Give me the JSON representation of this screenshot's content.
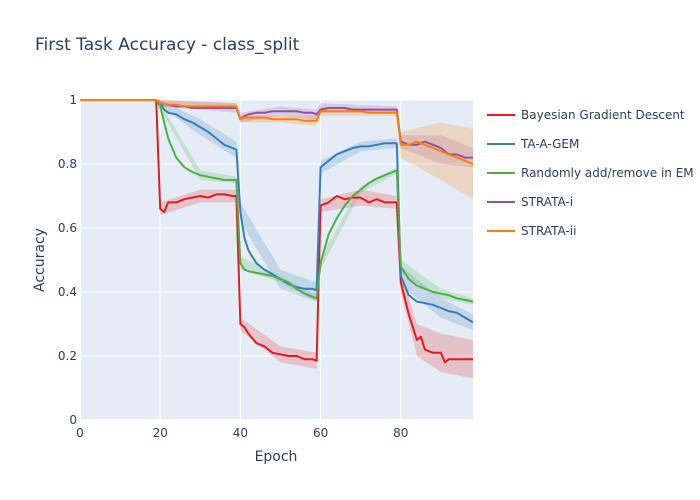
{
  "chart_data": {
    "type": "line",
    "title": "First Task Accuracy - class_split",
    "xlabel": "Epoch",
    "ylabel": "Accuracy",
    "xlim": [
      0,
      98
    ],
    "ylim": [
      0,
      1
    ],
    "xticks": [
      "0",
      "20",
      "40",
      "60",
      "80"
    ],
    "yticks": [
      "0",
      "0.2",
      "0.4",
      "0.6",
      "0.8",
      "1"
    ],
    "grid": true,
    "legend_position": "right",
    "background": "#e5ecf6",
    "series": [
      {
        "name": "Bayesian Gradient Descent",
        "color": "#e41a1c",
        "points": [
          [
            0,
            1.0
          ],
          [
            19,
            1.0
          ],
          [
            20,
            0.66
          ],
          [
            21,
            0.65
          ],
          [
            22,
            0.68
          ],
          [
            24,
            0.68
          ],
          [
            26,
            0.69
          ],
          [
            28,
            0.695
          ],
          [
            30,
            0.7
          ],
          [
            32,
            0.695
          ],
          [
            34,
            0.705
          ],
          [
            36,
            0.705
          ],
          [
            38,
            0.7
          ],
          [
            39,
            0.7
          ],
          [
            40,
            0.3
          ],
          [
            41,
            0.29
          ],
          [
            42,
            0.27
          ],
          [
            44,
            0.24
          ],
          [
            46,
            0.23
          ],
          [
            48,
            0.21
          ],
          [
            50,
            0.205
          ],
          [
            52,
            0.2
          ],
          [
            54,
            0.2
          ],
          [
            56,
            0.19
          ],
          [
            58,
            0.19
          ],
          [
            59,
            0.185
          ],
          [
            60,
            0.67
          ],
          [
            62,
            0.68
          ],
          [
            64,
            0.7
          ],
          [
            66,
            0.69
          ],
          [
            68,
            0.695
          ],
          [
            70,
            0.695
          ],
          [
            72,
            0.68
          ],
          [
            74,
            0.69
          ],
          [
            76,
            0.68
          ],
          [
            78,
            0.68
          ],
          [
            79,
            0.68
          ],
          [
            80,
            0.43
          ],
          [
            82,
            0.33
          ],
          [
            84,
            0.25
          ],
          [
            85,
            0.26
          ],
          [
            86,
            0.22
          ],
          [
            88,
            0.21
          ],
          [
            90,
            0.21
          ],
          [
            91,
            0.18
          ],
          [
            92,
            0.19
          ],
          [
            94,
            0.19
          ],
          [
            96,
            0.19
          ],
          [
            98,
            0.19
          ]
        ],
        "band": [
          [
            0,
            1.0,
            1.0
          ],
          [
            19,
            1.0,
            1.0
          ],
          [
            20,
            0.64,
            0.68
          ],
          [
            30,
            0.68,
            0.72
          ],
          [
            39,
            0.68,
            0.72
          ],
          [
            40,
            0.28,
            0.32
          ],
          [
            50,
            0.18,
            0.23
          ],
          [
            59,
            0.16,
            0.21
          ],
          [
            60,
            0.65,
            0.69
          ],
          [
            70,
            0.67,
            0.72
          ],
          [
            79,
            0.66,
            0.7
          ],
          [
            80,
            0.4,
            0.46
          ],
          [
            84,
            0.2,
            0.3
          ],
          [
            90,
            0.15,
            0.27
          ],
          [
            98,
            0.13,
            0.25
          ]
        ]
      },
      {
        "name": "TA-A-GEM",
        "color": "#377eb8",
        "points": [
          [
            0,
            1.0
          ],
          [
            19,
            1.0
          ],
          [
            20,
            0.99
          ],
          [
            21,
            0.97
          ],
          [
            22,
            0.96
          ],
          [
            24,
            0.955
          ],
          [
            26,
            0.94
          ],
          [
            28,
            0.93
          ],
          [
            30,
            0.915
          ],
          [
            32,
            0.9
          ],
          [
            34,
            0.88
          ],
          [
            36,
            0.86
          ],
          [
            38,
            0.85
          ],
          [
            39,
            0.845
          ],
          [
            40,
            0.65
          ],
          [
            41,
            0.57
          ],
          [
            42,
            0.53
          ],
          [
            44,
            0.49
          ],
          [
            46,
            0.47
          ],
          [
            48,
            0.455
          ],
          [
            50,
            0.44
          ],
          [
            52,
            0.425
          ],
          [
            54,
            0.415
          ],
          [
            56,
            0.41
          ],
          [
            58,
            0.41
          ],
          [
            59,
            0.405
          ],
          [
            60,
            0.79
          ],
          [
            62,
            0.81
          ],
          [
            64,
            0.83
          ],
          [
            66,
            0.84
          ],
          [
            68,
            0.85
          ],
          [
            70,
            0.855
          ],
          [
            72,
            0.855
          ],
          [
            74,
            0.86
          ],
          [
            76,
            0.865
          ],
          [
            78,
            0.865
          ],
          [
            79,
            0.865
          ],
          [
            80,
            0.45
          ],
          [
            82,
            0.39
          ],
          [
            84,
            0.37
          ],
          [
            86,
            0.365
          ],
          [
            88,
            0.36
          ],
          [
            90,
            0.35
          ],
          [
            92,
            0.34
          ],
          [
            94,
            0.335
          ],
          [
            96,
            0.32
          ],
          [
            98,
            0.305
          ]
        ],
        "band": [
          [
            0,
            1.0,
            1.0
          ],
          [
            19,
            1.0,
            1.0
          ],
          [
            20,
            0.98,
            1.0
          ],
          [
            30,
            0.89,
            0.94
          ],
          [
            39,
            0.82,
            0.87
          ],
          [
            40,
            0.62,
            0.68
          ],
          [
            50,
            0.41,
            0.47
          ],
          [
            59,
            0.37,
            0.43
          ],
          [
            60,
            0.77,
            0.81
          ],
          [
            70,
            0.84,
            0.87
          ],
          [
            79,
            0.85,
            0.88
          ],
          [
            80,
            0.42,
            0.48
          ],
          [
            90,
            0.32,
            0.38
          ],
          [
            98,
            0.28,
            0.33
          ]
        ]
      },
      {
        "name": "Randomly add/remove in EM",
        "color": "#4daf4a",
        "points": [
          [
            0,
            1.0
          ],
          [
            19,
            1.0
          ],
          [
            20,
            0.98
          ],
          [
            21,
            0.93
          ],
          [
            22,
            0.88
          ],
          [
            24,
            0.82
          ],
          [
            26,
            0.79
          ],
          [
            28,
            0.775
          ],
          [
            30,
            0.765
          ],
          [
            32,
            0.76
          ],
          [
            34,
            0.755
          ],
          [
            36,
            0.75
          ],
          [
            38,
            0.75
          ],
          [
            39,
            0.75
          ],
          [
            40,
            0.49
          ],
          [
            41,
            0.47
          ],
          [
            42,
            0.465
          ],
          [
            44,
            0.46
          ],
          [
            46,
            0.455
          ],
          [
            48,
            0.45
          ],
          [
            50,
            0.44
          ],
          [
            52,
            0.43
          ],
          [
            54,
            0.41
          ],
          [
            56,
            0.395
          ],
          [
            58,
            0.385
          ],
          [
            59,
            0.38
          ],
          [
            60,
            0.49
          ],
          [
            62,
            0.58
          ],
          [
            64,
            0.63
          ],
          [
            66,
            0.67
          ],
          [
            68,
            0.7
          ],
          [
            70,
            0.72
          ],
          [
            72,
            0.74
          ],
          [
            74,
            0.755
          ],
          [
            76,
            0.765
          ],
          [
            78,
            0.775
          ],
          [
            79,
            0.78
          ],
          [
            80,
            0.48
          ],
          [
            82,
            0.44
          ],
          [
            84,
            0.42
          ],
          [
            86,
            0.41
          ],
          [
            88,
            0.4
          ],
          [
            90,
            0.395
          ],
          [
            92,
            0.39
          ],
          [
            94,
            0.38
          ],
          [
            96,
            0.375
          ],
          [
            98,
            0.37
          ]
        ],
        "band": [
          [
            0,
            1.0,
            1.0
          ],
          [
            19,
            1.0,
            1.0
          ],
          [
            20,
            0.97,
            0.99
          ],
          [
            30,
            0.75,
            0.78
          ],
          [
            39,
            0.74,
            0.76
          ],
          [
            40,
            0.47,
            0.51
          ],
          [
            50,
            0.43,
            0.45
          ],
          [
            59,
            0.37,
            0.39
          ],
          [
            60,
            0.47,
            0.51
          ],
          [
            70,
            0.71,
            0.73
          ],
          [
            79,
            0.77,
            0.79
          ],
          [
            80,
            0.46,
            0.5
          ],
          [
            90,
            0.38,
            0.41
          ],
          [
            98,
            0.36,
            0.38
          ]
        ]
      },
      {
        "name": "STRATA-i",
        "color": "#984ea3",
        "points": [
          [
            0,
            1.0
          ],
          [
            19,
            1.0
          ],
          [
            20,
            0.99
          ],
          [
            22,
            0.985
          ],
          [
            24,
            0.98
          ],
          [
            26,
            0.98
          ],
          [
            28,
            0.975
          ],
          [
            30,
            0.975
          ],
          [
            32,
            0.975
          ],
          [
            34,
            0.975
          ],
          [
            36,
            0.975
          ],
          [
            38,
            0.975
          ],
          [
            39,
            0.975
          ],
          [
            40,
            0.94
          ],
          [
            41,
            0.95
          ],
          [
            42,
            0.955
          ],
          [
            44,
            0.96
          ],
          [
            46,
            0.96
          ],
          [
            48,
            0.965
          ],
          [
            50,
            0.965
          ],
          [
            52,
            0.965
          ],
          [
            54,
            0.965
          ],
          [
            56,
            0.96
          ],
          [
            58,
            0.96
          ],
          [
            59,
            0.955
          ],
          [
            60,
            0.97
          ],
          [
            62,
            0.975
          ],
          [
            64,
            0.975
          ],
          [
            66,
            0.975
          ],
          [
            68,
            0.97
          ],
          [
            70,
            0.97
          ],
          [
            72,
            0.97
          ],
          [
            74,
            0.97
          ],
          [
            76,
            0.97
          ],
          [
            78,
            0.97
          ],
          [
            79,
            0.97
          ],
          [
            80,
            0.87
          ],
          [
            82,
            0.86
          ],
          [
            84,
            0.86
          ],
          [
            86,
            0.87
          ],
          [
            88,
            0.86
          ],
          [
            90,
            0.85
          ],
          [
            92,
            0.83
          ],
          [
            94,
            0.83
          ],
          [
            96,
            0.82
          ],
          [
            98,
            0.82
          ]
        ],
        "band": [
          [
            0,
            1.0,
            1.0
          ],
          [
            19,
            1.0,
            1.0
          ],
          [
            20,
            0.98,
            1.0
          ],
          [
            39,
            0.96,
            0.99
          ],
          [
            40,
            0.93,
            0.96
          ],
          [
            50,
            0.95,
            0.98
          ],
          [
            59,
            0.94,
            0.97
          ],
          [
            60,
            0.96,
            0.99
          ],
          [
            79,
            0.96,
            0.98
          ],
          [
            80,
            0.85,
            0.89
          ],
          [
            90,
            0.8,
            0.89
          ],
          [
            98,
            0.79,
            0.85
          ]
        ]
      },
      {
        "name": "STRATA-ii",
        "color": "#ff7f00",
        "points": [
          [
            0,
            1.0
          ],
          [
            19,
            1.0
          ],
          [
            20,
            0.99
          ],
          [
            22,
            0.985
          ],
          [
            24,
            0.985
          ],
          [
            26,
            0.98
          ],
          [
            28,
            0.98
          ],
          [
            30,
            0.98
          ],
          [
            32,
            0.98
          ],
          [
            34,
            0.98
          ],
          [
            36,
            0.98
          ],
          [
            38,
            0.98
          ],
          [
            39,
            0.98
          ],
          [
            40,
            0.94
          ],
          [
            41,
            0.945
          ],
          [
            42,
            0.945
          ],
          [
            44,
            0.945
          ],
          [
            46,
            0.945
          ],
          [
            48,
            0.94
          ],
          [
            50,
            0.94
          ],
          [
            52,
            0.94
          ],
          [
            54,
            0.94
          ],
          [
            56,
            0.935
          ],
          [
            58,
            0.935
          ],
          [
            59,
            0.935
          ],
          [
            60,
            0.965
          ],
          [
            62,
            0.965
          ],
          [
            64,
            0.965
          ],
          [
            66,
            0.965
          ],
          [
            68,
            0.965
          ],
          [
            70,
            0.965
          ],
          [
            72,
            0.96
          ],
          [
            74,
            0.96
          ],
          [
            76,
            0.96
          ],
          [
            78,
            0.96
          ],
          [
            79,
            0.96
          ],
          [
            80,
            0.86
          ],
          [
            82,
            0.86
          ],
          [
            84,
            0.87
          ],
          [
            86,
            0.86
          ],
          [
            88,
            0.85
          ],
          [
            90,
            0.84
          ],
          [
            92,
            0.83
          ],
          [
            94,
            0.82
          ],
          [
            96,
            0.81
          ],
          [
            98,
            0.8
          ]
        ],
        "band": [
          [
            0,
            1.0,
            1.0
          ],
          [
            19,
            1.0,
            1.0
          ],
          [
            20,
            0.98,
            1.0
          ],
          [
            39,
            0.97,
            0.99
          ],
          [
            40,
            0.93,
            0.95
          ],
          [
            50,
            0.93,
            0.95
          ],
          [
            59,
            0.92,
            0.95
          ],
          [
            60,
            0.95,
            0.98
          ],
          [
            79,
            0.95,
            0.97
          ],
          [
            80,
            0.82,
            0.9
          ],
          [
            90,
            0.75,
            0.93
          ],
          [
            98,
            0.69,
            0.91
          ]
        ]
      }
    ]
  }
}
